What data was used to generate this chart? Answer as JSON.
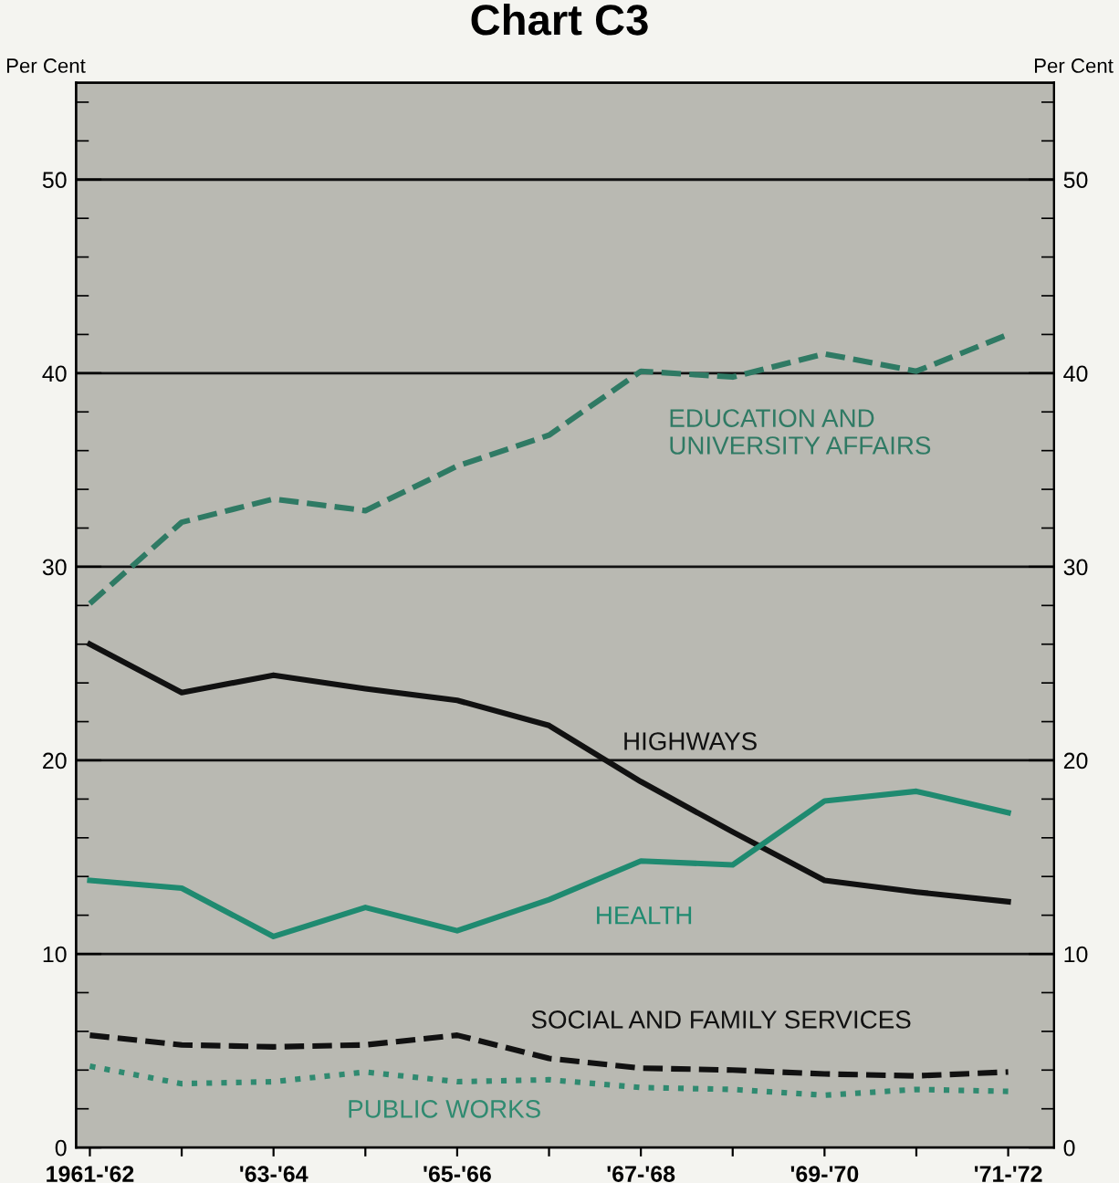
{
  "chart_data": {
    "type": "line",
    "title": "Chart C3",
    "ylabel": "Per Cent",
    "y2label": "Per Cent",
    "categories": [
      "1961-'62",
      null,
      "'63-'64",
      null,
      "'65-'66",
      null,
      "'67-'68",
      null,
      "'69-'70",
      null,
      "'71-'72"
    ],
    "series": [
      {
        "name": "EDUCATION AND\nUNIVERSITY AFFAIRS",
        "color": "#2f7a64",
        "line_style": "dashed",
        "values": [
          28.1,
          32.3,
          33.5,
          32.9,
          35.2,
          36.8,
          40.1,
          39.8,
          41.0,
          40.1,
          42.0
        ]
      },
      {
        "name": "HIGHWAYS",
        "color": "#111111",
        "line_style": "solid",
        "values": [
          26.0,
          23.5,
          24.4,
          23.7,
          23.1,
          21.8,
          18.9,
          16.3,
          13.8,
          13.2,
          12.7
        ]
      },
      {
        "name": "HEALTH",
        "color": "#1f8a70",
        "line_style": "solid",
        "values": [
          13.8,
          13.4,
          10.9,
          12.4,
          11.2,
          12.8,
          14.8,
          14.6,
          17.9,
          18.4,
          17.3
        ]
      },
      {
        "name": "SOCIAL AND FAMILY SERVICES",
        "color": "#111111",
        "line_style": "dashed",
        "values": [
          5.8,
          5.3,
          5.2,
          5.3,
          5.8,
          4.6,
          4.1,
          4.0,
          3.8,
          3.7,
          3.9
        ]
      },
      {
        "name": "PUBLIC WORKS",
        "color": "#2f8a70",
        "line_style": "dotted",
        "values": [
          4.2,
          3.3,
          3.4,
          3.9,
          3.4,
          3.5,
          3.1,
          3.0,
          2.7,
          3.0,
          2.9
        ]
      }
    ],
    "ylim": [
      0,
      55
    ],
    "yticks": [
      0,
      10,
      20,
      30,
      40,
      50
    ],
    "y2lim": [
      0,
      55
    ],
    "y2ticks": [
      0,
      10,
      20,
      30,
      40,
      50
    ],
    "grid": "y",
    "legend": false
  }
}
